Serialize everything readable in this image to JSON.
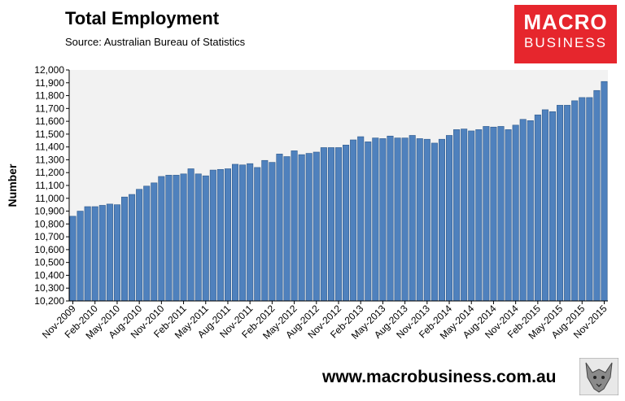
{
  "header": {
    "title": "Total Employment",
    "subtitle": "Source: Australian Bureau of Statistics"
  },
  "logo": {
    "line1": "MACRO",
    "line2": "BUSINESS"
  },
  "footer": {
    "website": "www.macrobusiness.com.au"
  },
  "colors": {
    "bar_fill": "#4f81bd",
    "bar_edge": "#2f5a8c",
    "plot_background": "#f2f2f2",
    "logo_background": "#e6262d"
  },
  "chart_data": {
    "type": "bar",
    "title": "Total Employment",
    "subtitle": "Source: Australian Bureau of Statistics",
    "xlabel": "",
    "ylabel": "Number",
    "ylim": [
      10200,
      12000
    ],
    "ytick_step": 100,
    "grid": false,
    "legend": "none",
    "start_month": "Nov-2009",
    "end_month": "Nov-2015",
    "x_tick_labels": [
      "Nov-2009",
      "Feb-2010",
      "May-2010",
      "Aug-2010",
      "Nov-2010",
      "Feb-2011",
      "May-2011",
      "Aug-2011",
      "Nov-2011",
      "Feb-2012",
      "May-2012",
      "Aug-2012",
      "Nov-2012",
      "Feb-2013",
      "May-2013",
      "Aug-2013",
      "Nov-2013",
      "Feb-2014",
      "May-2014",
      "Aug-2014",
      "Nov-2014",
      "Feb-2015",
      "May-2015",
      "Aug-2015",
      "Nov-2015"
    ],
    "values": [
      10860,
      10900,
      10935,
      10935,
      10945,
      10955,
      10950,
      11010,
      11030,
      11070,
      11095,
      11120,
      11170,
      11180,
      11180,
      11190,
      11230,
      11190,
      11175,
      11220,
      11225,
      11230,
      11265,
      11260,
      11270,
      11240,
      11295,
      11280,
      11345,
      11325,
      11370,
      11340,
      11350,
      11360,
      11395,
      11395,
      11395,
      11415,
      11455,
      11480,
      11440,
      11470,
      11465,
      11485,
      11470,
      11470,
      11490,
      11465,
      11460,
      11430,
      11460,
      11490,
      11535,
      11540,
      11525,
      11535,
      11560,
      11555,
      11560,
      11535,
      11570,
      11615,
      11605,
      11650,
      11690,
      11675,
      11725,
      11725,
      11760,
      11785,
      11785,
      11840,
      11910
    ]
  }
}
